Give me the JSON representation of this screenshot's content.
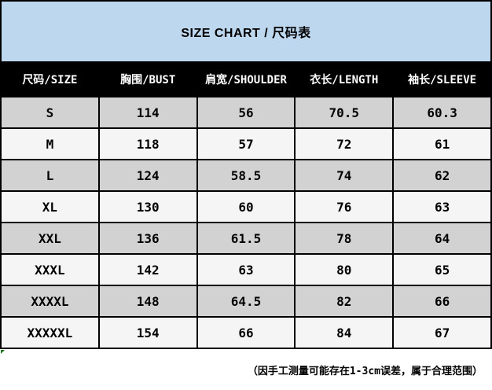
{
  "banner": {
    "title": "SIZE CHART / 尺码表"
  },
  "table": {
    "columns": [
      "尺码/SIZE",
      "胸围/BUST",
      "肩宽/SHOULDER",
      "衣长/LENGTH",
      "袖长/SLEEVE"
    ],
    "rows": [
      [
        "S",
        "114",
        "56",
        "70.5",
        "60.3"
      ],
      [
        "M",
        "118",
        "57",
        "72",
        "61"
      ],
      [
        "L",
        "124",
        "58.5",
        "74",
        "62"
      ],
      [
        "XL",
        "130",
        "60",
        "76",
        "63"
      ],
      [
        "XXL",
        "136",
        "61.5",
        "78",
        "64"
      ],
      [
        "XXXL",
        "142",
        "63",
        "80",
        "65"
      ],
      [
        "XXXXL",
        "148",
        "64.5",
        "82",
        "66"
      ],
      [
        "XXXXXL",
        "154",
        "66",
        "84",
        "67"
      ]
    ]
  },
  "footer": {
    "note": "（因手工测量可能存在1-3cm误差，属于合理范围）"
  },
  "colors": {
    "banner_bg": "#bdd7ee",
    "header_bg": "#000000",
    "header_text": "#ffffff",
    "row_gray": "#d2d2d2",
    "row_light": "#f5f5f5",
    "grid_border": "#000000",
    "error_indicator_green": "#1a7a1f"
  },
  "chart_data": {
    "type": "table",
    "title": "SIZE CHART / 尺码表",
    "columns": [
      "尺码/SIZE",
      "胸围/BUST",
      "肩宽/SHOULDER",
      "衣长/LENGTH",
      "袖长/SLEEVE"
    ],
    "sizes": [
      "S",
      "M",
      "L",
      "XL",
      "XXL",
      "XXXL",
      "XXXXL",
      "XXXXXL"
    ],
    "series": [
      {
        "name": "胸围/BUST",
        "values": [
          114,
          118,
          124,
          130,
          136,
          142,
          148,
          154
        ]
      },
      {
        "name": "肩宽/SHOULDER",
        "values": [
          56,
          57,
          58.5,
          60,
          61.5,
          63,
          64.5,
          66
        ]
      },
      {
        "name": "衣长/LENGTH",
        "values": [
          70.5,
          72,
          74,
          76,
          78,
          80,
          82,
          84
        ]
      },
      {
        "name": "袖长/SLEEVE",
        "values": [
          60.3,
          61,
          62,
          63,
          64,
          65,
          66,
          67
        ]
      }
    ],
    "annotation": "（因手工测量可能存在1-3cm误差，属于合理范围）",
    "layout": "alternating gray/light rows, black header row, light blue title banner"
  }
}
